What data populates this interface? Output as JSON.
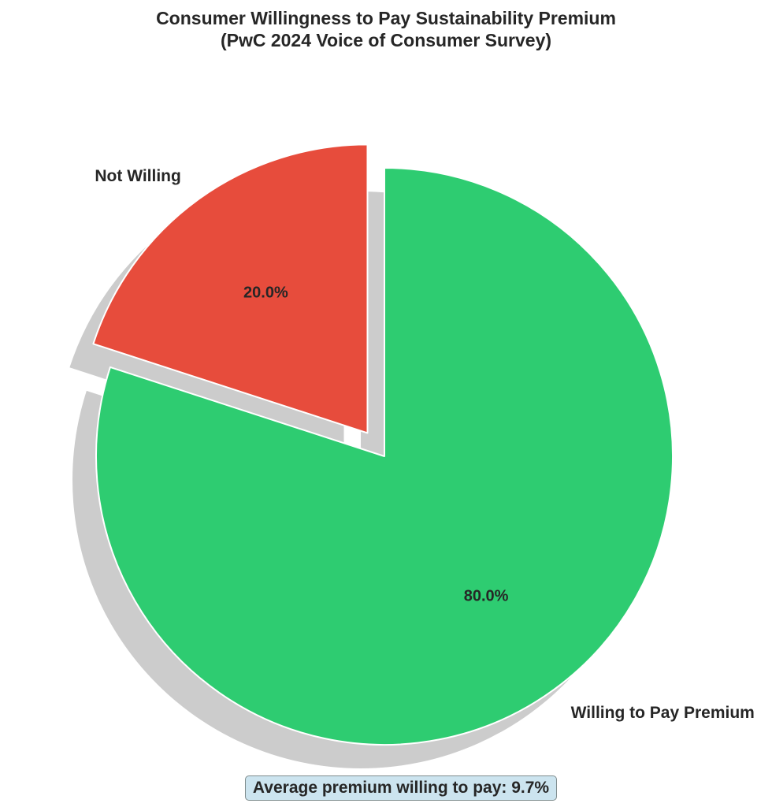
{
  "chart_data": {
    "type": "pie",
    "title_lines": [
      "Consumer Willingness to Pay Sustainability Premium",
      "(PwC 2024 Voice of Consumer Survey)"
    ],
    "start_angle_deg": 90,
    "direction": "clockwise",
    "shadow": true,
    "slices": [
      {
        "label": "Willing to Pay Premium",
        "value": 80.0,
        "pct_label": "80.0%",
        "color": "#2ecc71",
        "exploded": false
      },
      {
        "label": "Not Willing",
        "value": 20.0,
        "pct_label": "20.0%",
        "color": "#e74c3c",
        "exploded": true
      }
    ],
    "annotation": "Average premium willing to pay: 9.7%",
    "annotation_box_color": "#cce4ef"
  }
}
